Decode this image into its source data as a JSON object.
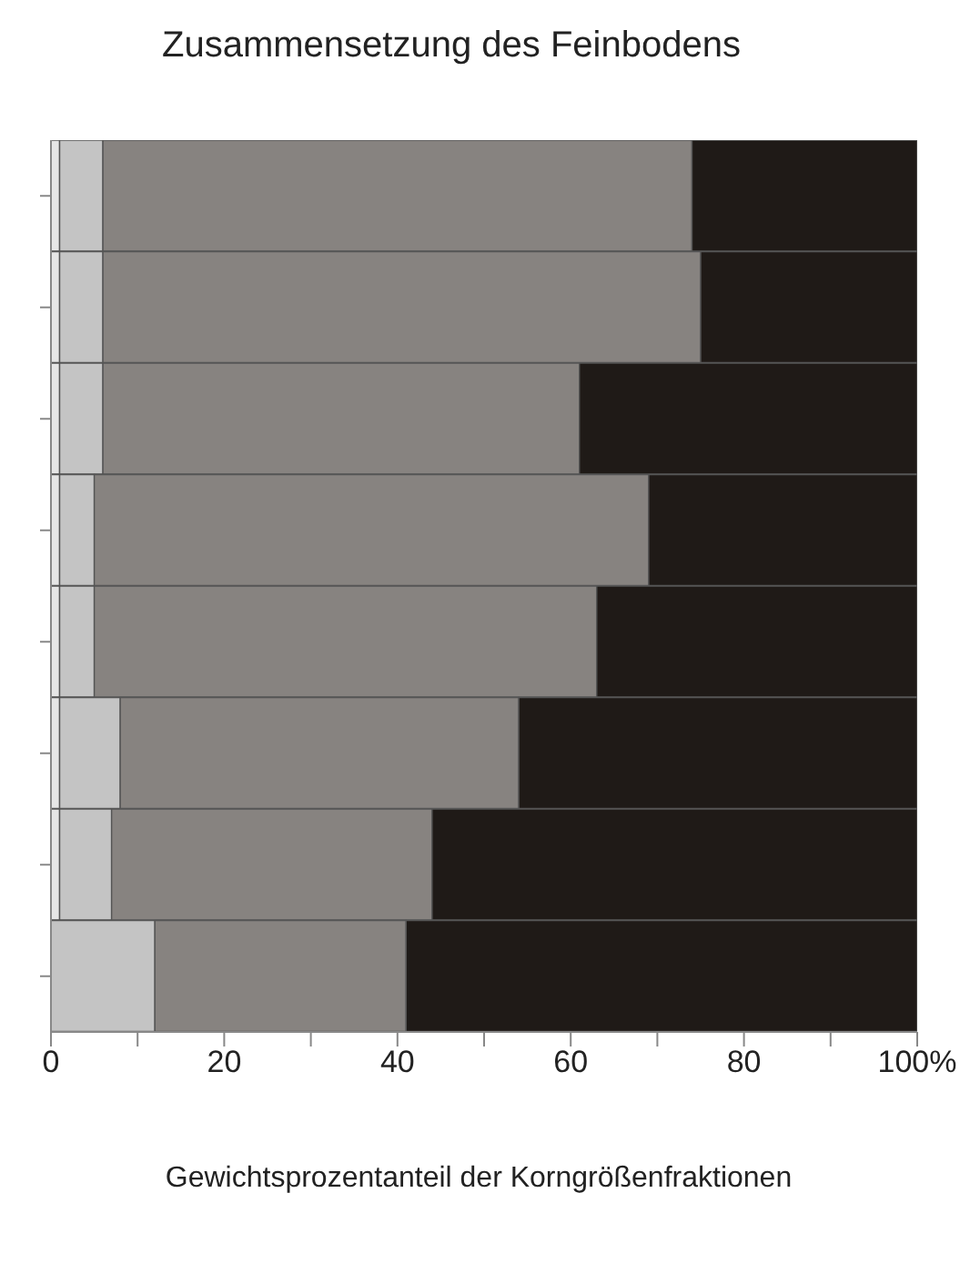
{
  "chart_data": {
    "type": "bar",
    "title": "Zusammensetzung des Feinbodens",
    "xlabel": "Gewichtsprozentanteil der Korngrößenfraktionen",
    "orientation": "horizontal",
    "stacked": true,
    "categories": [
      null,
      null,
      null,
      null,
      null,
      null,
      null,
      null
    ],
    "series": [
      {
        "color": "#e6e6e6",
        "values": [
          1,
          1,
          1,
          1,
          1,
          1,
          1,
          0
        ]
      },
      {
        "color": "#c4c4c4",
        "values": [
          5,
          5,
          5,
          4,
          4,
          7,
          6,
          12
        ]
      },
      {
        "color": "#878380",
        "values": [
          68,
          69,
          55,
          64,
          58,
          46,
          37,
          29
        ]
      },
      {
        "color": "#1f1a17",
        "values": [
          26,
          25,
          39,
          31,
          37,
          46,
          56,
          59
        ]
      }
    ],
    "xlim": [
      0,
      100
    ],
    "xticks": [
      0,
      {
        "value": 10,
        "label": null
      },
      20,
      {
        "value": 30,
        "label": null
      },
      40,
      {
        "value": 50,
        "label": null
      },
      60,
      {
        "value": 70,
        "label": null
      },
      80,
      {
        "value": 90,
        "label": null
      },
      {
        "value": 100,
        "label": "100%"
      }
    ],
    "tick_labels": "x",
    "grid": false,
    "legend": false
  }
}
